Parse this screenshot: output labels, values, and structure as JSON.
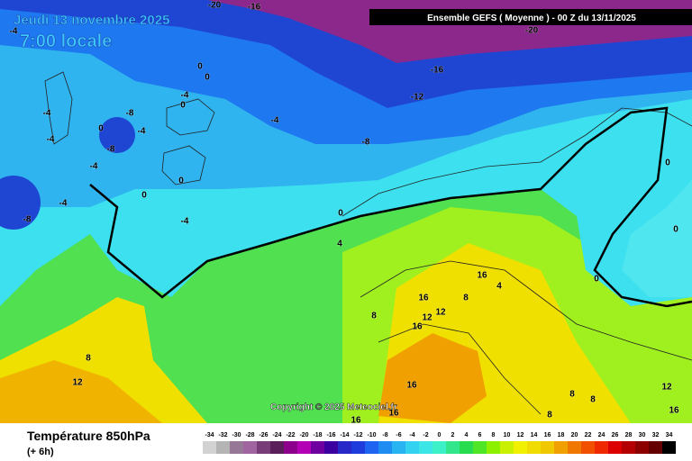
{
  "header": {
    "date": "Jeudi 13 novembre 2025",
    "time": "7:00 locale",
    "model": "Ensemble GEFS  ( Moyenne )  -  00 Z du 13/11/2025"
  },
  "copyright": "Copyright © 2025 Meteociel.fr",
  "footer": {
    "title": "Température 850hPa",
    "lead": "(+ 6h)"
  },
  "contour_labels": [
    "-20",
    "-16",
    "-20",
    "-4",
    "-16",
    "-12",
    "-8",
    "0",
    "0",
    "-4",
    "0",
    "-8",
    "0",
    "-4",
    "-8",
    "-4",
    "-4",
    "-4",
    "-4",
    "0",
    "0",
    "-4",
    "-4",
    "0",
    "4",
    "-8",
    "0",
    "0",
    "0",
    "16",
    "4",
    "16",
    "12",
    "12",
    "8",
    "16",
    "8",
    "8",
    "12",
    "16",
    "16",
    "16",
    "8",
    "8",
    "12",
    "16",
    "8"
  ],
  "legend": {
    "labels": [
      -34,
      -32,
      -30,
      -28,
      -26,
      -24,
      -22,
      -20,
      -18,
      -16,
      -14,
      -12,
      -10,
      -8,
      -6,
      -4,
      -2,
      0,
      2,
      4,
      6,
      8,
      10,
      12,
      14,
      16,
      18,
      20,
      22,
      24,
      26,
      28,
      30,
      32,
      34
    ],
    "colors": [
      "#d2d2d2",
      "#b4b4b4",
      "#967896",
      "#a064a0",
      "#783c78",
      "#5a1e5a",
      "#8c008c",
      "#b400b4",
      "#6e00a0",
      "#3c00a0",
      "#2828c8",
      "#1e3cdc",
      "#1e64f0",
      "#1e8cf0",
      "#28b4f0",
      "#32d2f0",
      "#3ce6e6",
      "#3cf0c8",
      "#32e68c",
      "#28dc50",
      "#50e628",
      "#8cf000",
      "#c8f000",
      "#f0f000",
      "#f0dc00",
      "#f0c800",
      "#f0a000",
      "#f07800",
      "#f05000",
      "#f02800",
      "#dc0000",
      "#b40000",
      "#8c0000",
      "#640000",
      "#000000"
    ]
  }
}
